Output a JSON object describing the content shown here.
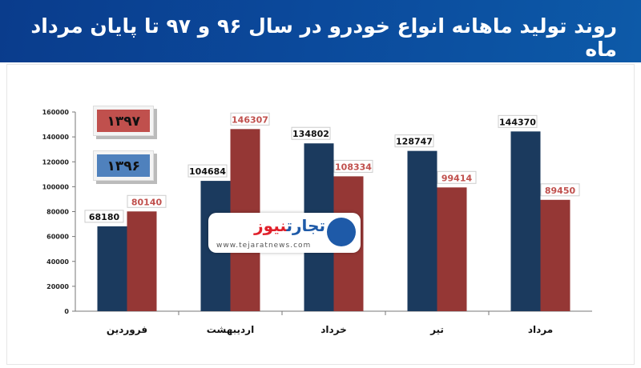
{
  "header": {
    "title": "روند تولید ماهانه انواع خودرو در سال ۹۶ و ۹۷ تا پایان مرداد ماه"
  },
  "logo": {
    "brand_a": "تجارت",
    "brand_b": "نیوز",
    "url": "www.tejaratnews.com"
  },
  "chart_data": {
    "type": "bar",
    "title": "روند تولید ماهانه انواع خودرو در سال ۹۶ و ۹۷ تا پایان مرداد ماه",
    "categories": [
      "فروردین",
      "اردیبهشت",
      "خرداد",
      "تیر",
      "مرداد"
    ],
    "series": [
      {
        "name": "۱۳۹۶",
        "color": "#1b3a5e",
        "values": [
          68180,
          104684,
          134802,
          128747,
          144370
        ]
      },
      {
        "name": "۱۳۹۷",
        "color": "#953735",
        "values": [
          80140,
          146307,
          108334,
          99414,
          89450
        ]
      }
    ],
    "legend_colors": {
      "1396": "#4f81bd",
      "1397": "#c0504d"
    },
    "ylim": [
      0,
      160000
    ],
    "yticks": [
      0,
      20000,
      40000,
      60000,
      80000,
      100000,
      120000,
      140000,
      160000
    ],
    "legend": "top-left",
    "grid": false
  }
}
